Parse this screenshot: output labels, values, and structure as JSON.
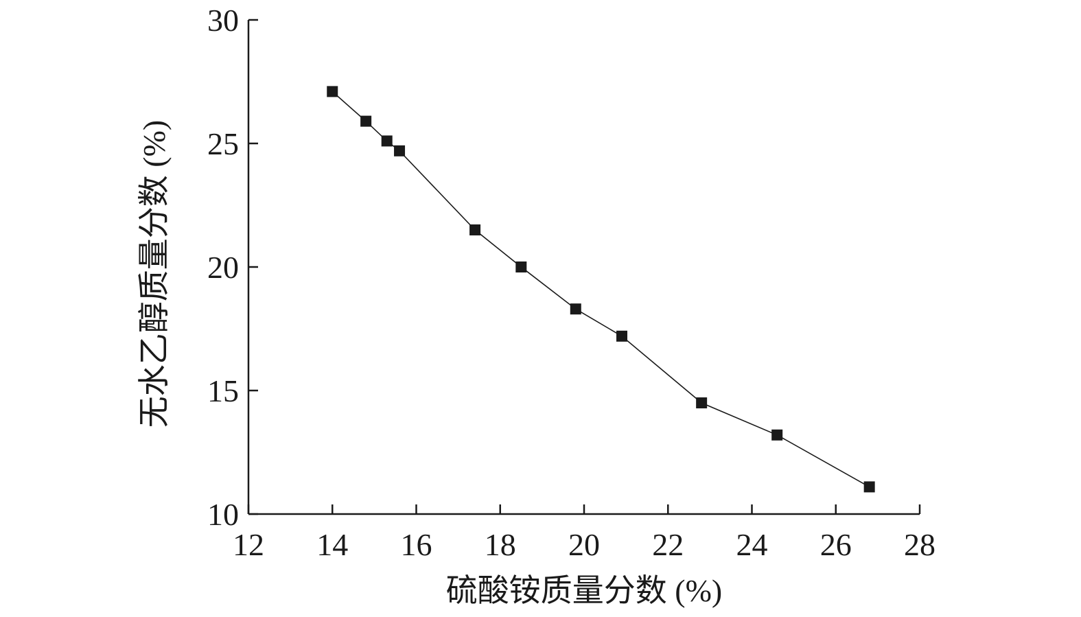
{
  "chart_data": {
    "type": "line",
    "title": "",
    "xlabel": "硫酸铵质量分数 (%)",
    "ylabel": "无水乙醇质量分数 (%)",
    "xlim": [
      12,
      28
    ],
    "ylim": [
      10,
      30
    ],
    "xticks": [
      12,
      14,
      16,
      18,
      20,
      22,
      24,
      26,
      28
    ],
    "yticks": [
      10,
      15,
      20,
      25,
      30
    ],
    "grid": false,
    "legend": "none",
    "marker": "square",
    "color": "#1a1a1a",
    "series": [
      {
        "x": [
          14.0,
          14.8,
          15.3,
          15.6,
          17.4,
          18.5,
          19.8,
          20.9,
          22.8,
          24.6,
          26.8
        ],
        "y": [
          27.1,
          25.9,
          25.1,
          24.7,
          21.5,
          20.0,
          18.3,
          17.2,
          14.5,
          13.2,
          11.1
        ]
      }
    ]
  }
}
